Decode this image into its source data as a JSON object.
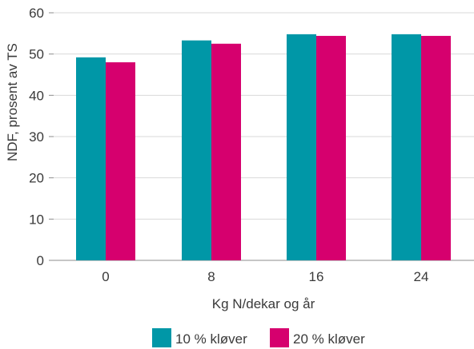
{
  "chart_data": {
    "type": "bar",
    "title": "",
    "xlabel": "Kg N/dekar og år",
    "ylabel": "NDF, prosent av TS",
    "categories": [
      "0",
      "8",
      "16",
      "24"
    ],
    "ylim": [
      0,
      60
    ],
    "yticks": [
      0,
      10,
      20,
      30,
      40,
      50,
      60
    ],
    "grid": true,
    "legend_position": "bottom-center",
    "series": [
      {
        "name": "10 % kløver",
        "color": "#0097a7",
        "values": [
          49.2,
          53.3,
          54.8,
          54.8
        ]
      },
      {
        "name": "20 % kløver",
        "color": "#d6006e",
        "values": [
          48.0,
          52.5,
          54.4,
          54.4
        ]
      }
    ]
  }
}
